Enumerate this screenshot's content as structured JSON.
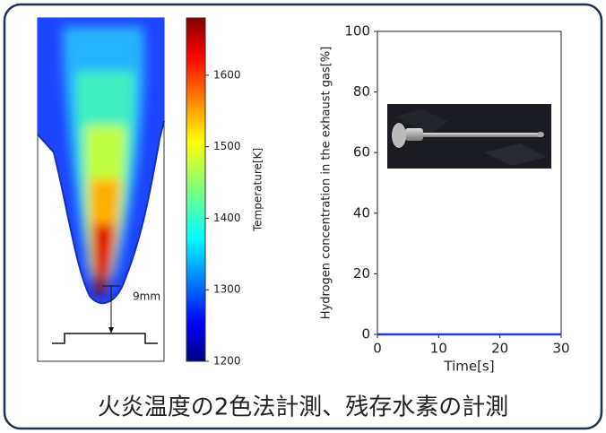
{
  "chart_data": [
    {
      "type": "colorbar",
      "label": "Temperature[K]",
      "zlim": [
        1200,
        1680
      ],
      "ticks": [
        1200,
        1300,
        1400,
        1500,
        1600
      ],
      "colormap": "jet",
      "annotation": "9mm"
    },
    {
      "type": "line",
      "xlabel": "Time[s]",
      "ylabel": "Hydrogen concentration in the exhaust gas[%]",
      "x": [
        0,
        30
      ],
      "series": [
        {
          "color": "#1f3fd0",
          "values": [
            0,
            0
          ]
        }
      ],
      "xlim": [
        0,
        30
      ],
      "ylim": [
        0,
        100
      ],
      "xticks": [
        0,
        10,
        20,
        30
      ],
      "yticks": [
        0,
        20,
        40,
        60,
        80,
        100
      ]
    }
  ],
  "caption": "火炎温度の2色法計測、残存水素の計測"
}
